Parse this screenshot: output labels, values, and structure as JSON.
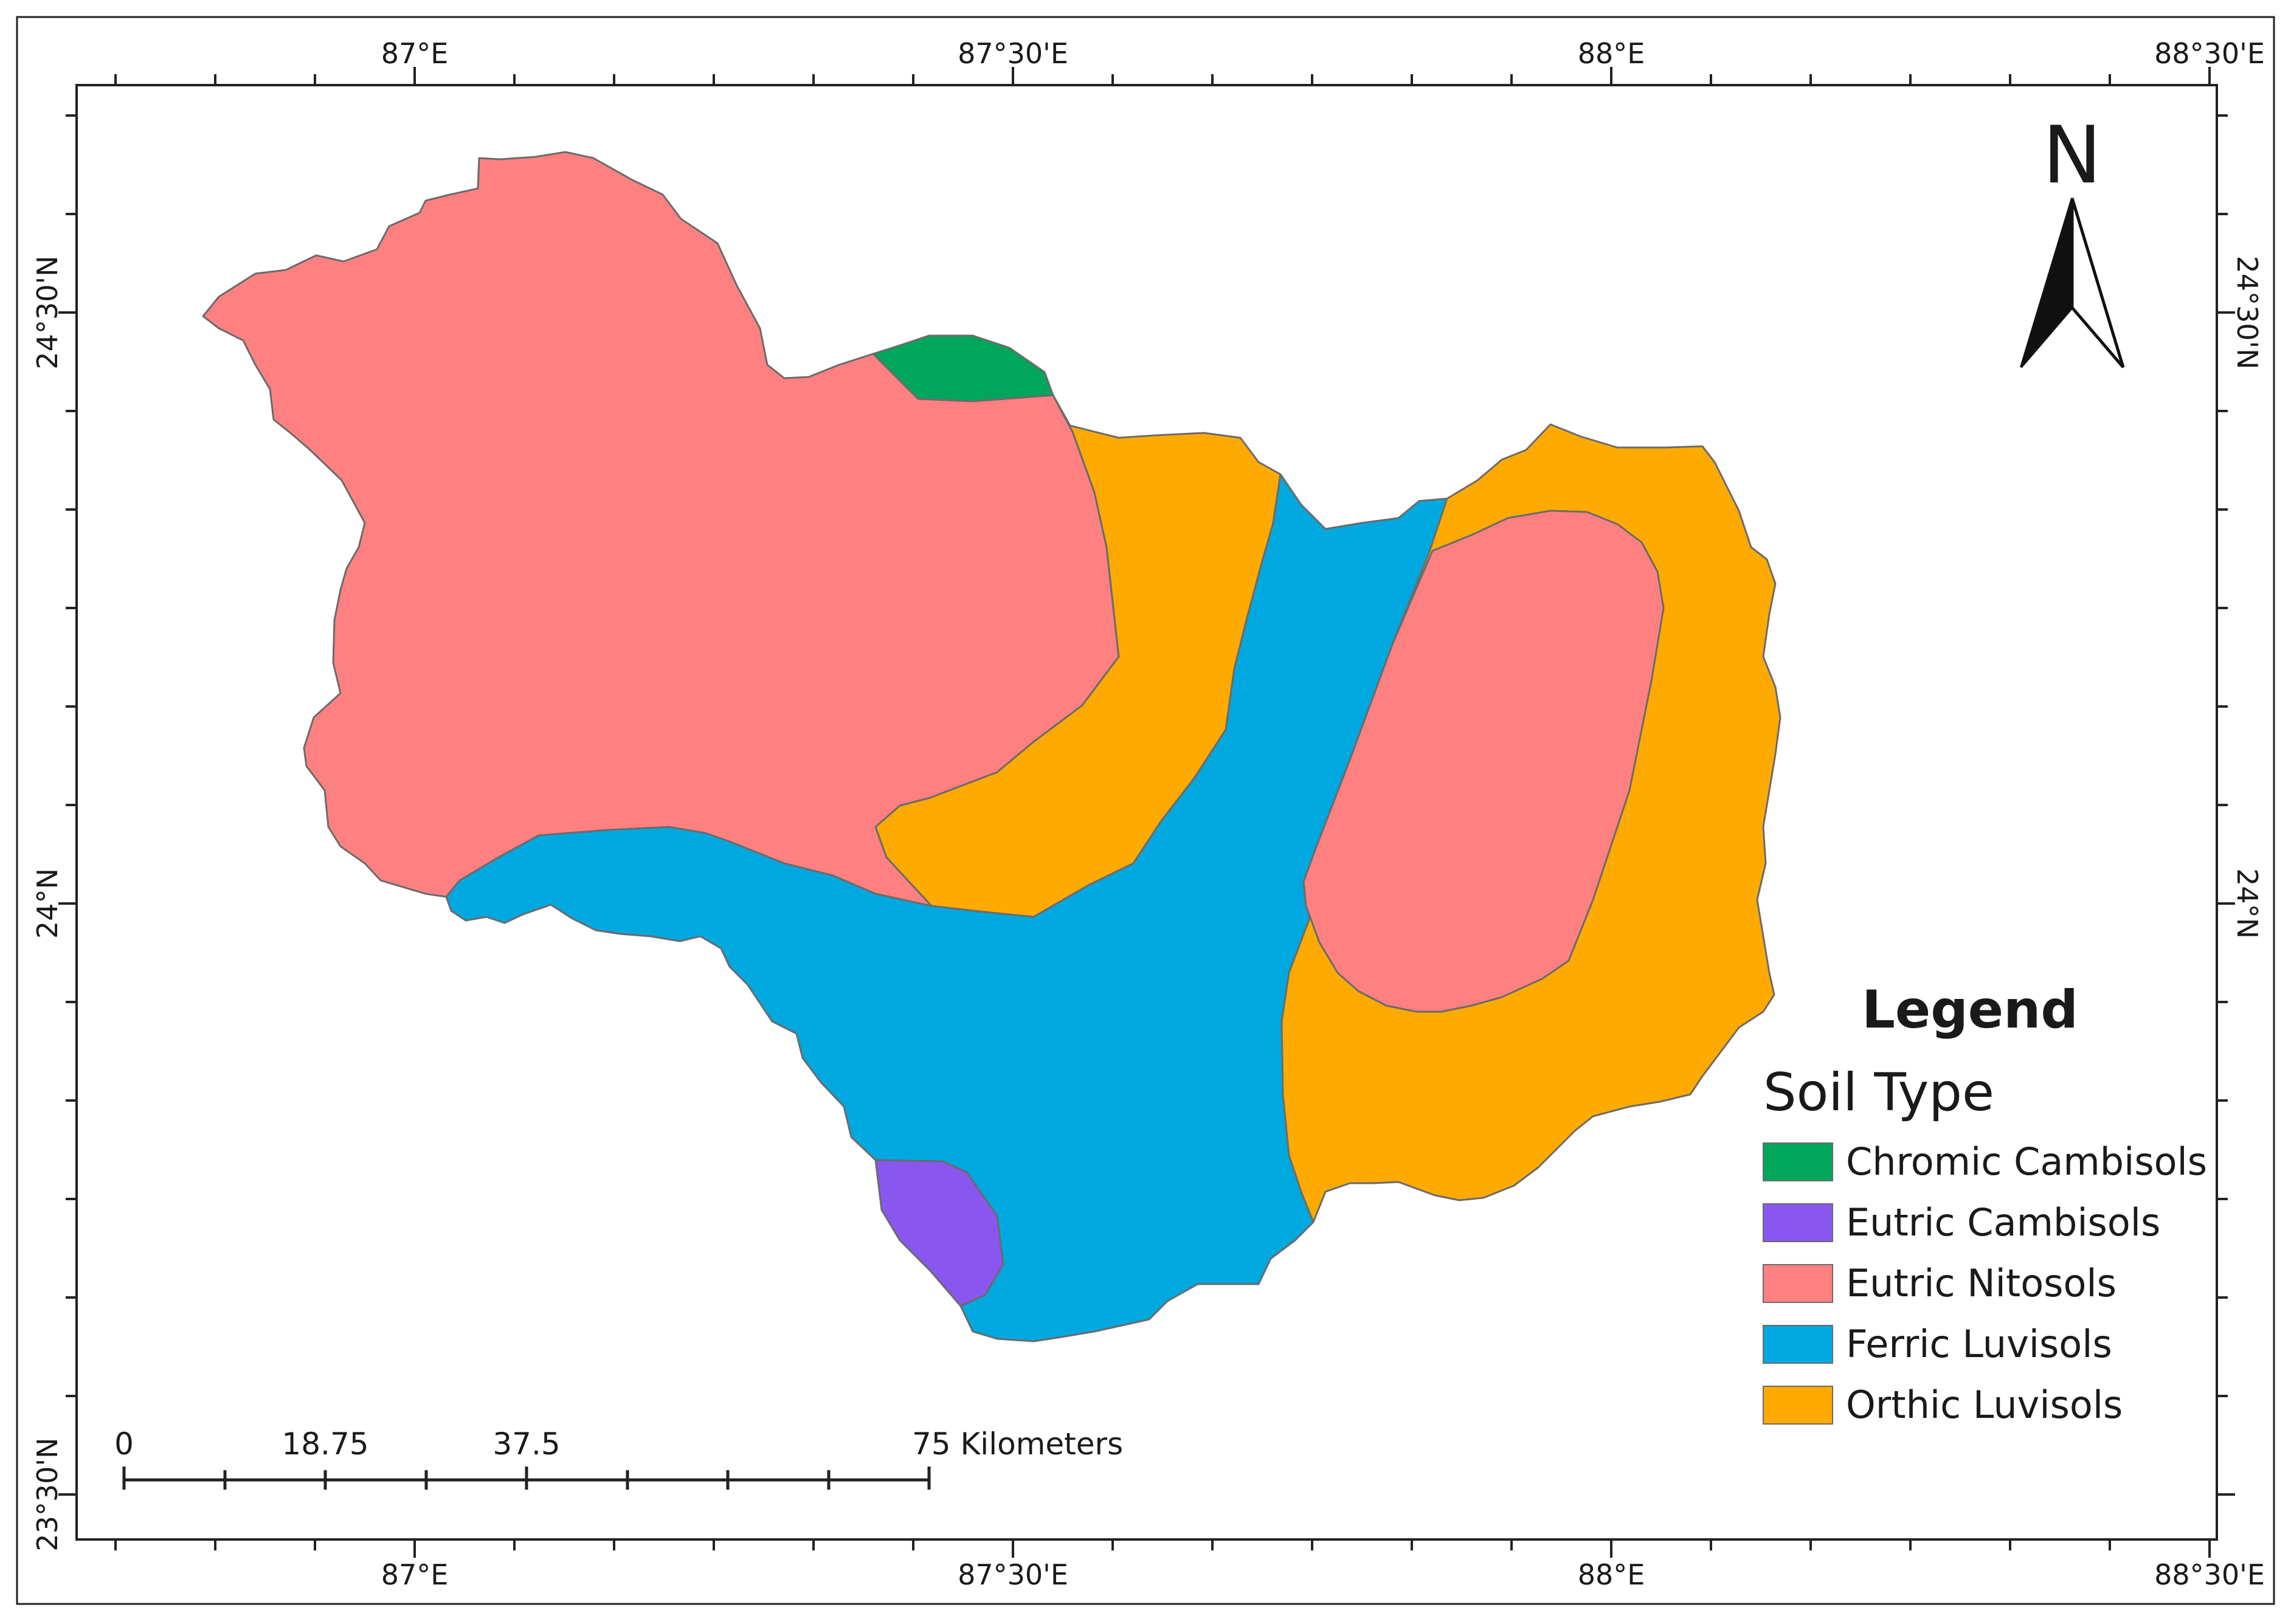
{
  "map": {
    "longitude_labels": [
      "87°E",
      "87°30'E",
      "88°E",
      "88°30'E"
    ],
    "latitude_labels": [
      "24°30'N",
      "24°N",
      "23°30'N"
    ],
    "north_arrow": {
      "label": "N"
    },
    "legend": {
      "title": "Legend",
      "subtitle": "Soil Type",
      "items": [
        {
          "label": "Chromic Cambisols",
          "color": "#00A65A"
        },
        {
          "label": "Eutric Cambisols",
          "color": "#8A56F0"
        },
        {
          "label": "Eutric Nitosols",
          "color": "#FF8080"
        },
        {
          "label": "Ferric Luvisols",
          "color": "#00A8E0"
        },
        {
          "label": "Orthic Luvisols",
          "color": "#FFAA00"
        }
      ]
    },
    "scale_bar": {
      "labels": [
        "0",
        "18.75",
        "37.5",
        "75 Kilometers"
      ]
    }
  }
}
